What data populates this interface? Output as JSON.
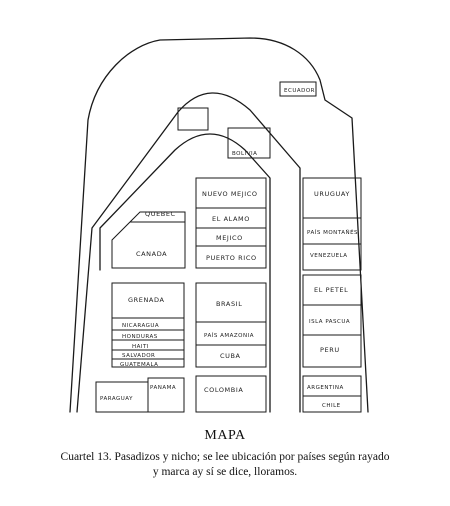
{
  "caption": {
    "title": "MAPA",
    "line1": "Cuartel 13. Pasadizos y nicho; se lee ubicación por países según rayado",
    "line2": "y marca ay sí se dice, lloramos."
  },
  "labels": {
    "ecuador": "ECUADOR",
    "bolivia": "BOLIVIA",
    "quebec": "QUEBEC",
    "canada": "CANADA",
    "nuevo_mexico": "NUEVO MEJICO",
    "el_alamo": "EL ALAMO",
    "mexico": "MEJICO",
    "puerto_rico": "PUERTO RICO",
    "uruguay": "URUGUAY",
    "pais_montanes": "PAÍS MONTAÑÉS",
    "venezuela": "VENEZUELA",
    "granada": "GRENADA",
    "nicaragua": "NICARAGUA",
    "honduras": "HONDURAS",
    "haiti": "HAITI",
    "salvador": "SALVADOR",
    "guatemala": "GUATEMALA",
    "brasil": "BRASIL",
    "pais_amazonia": "PAÍS AMAZONIA",
    "cuba": "CUBA",
    "el_petel": "EL PETEL",
    "isla_pascua": "ISLA PASCUA",
    "peru": "PERU",
    "paraguay": "PARAGUAY",
    "panama": "PANAMA",
    "colombia": "COLOMBIA",
    "argentina": "ARGENTINA",
    "chile": "CHILE"
  }
}
